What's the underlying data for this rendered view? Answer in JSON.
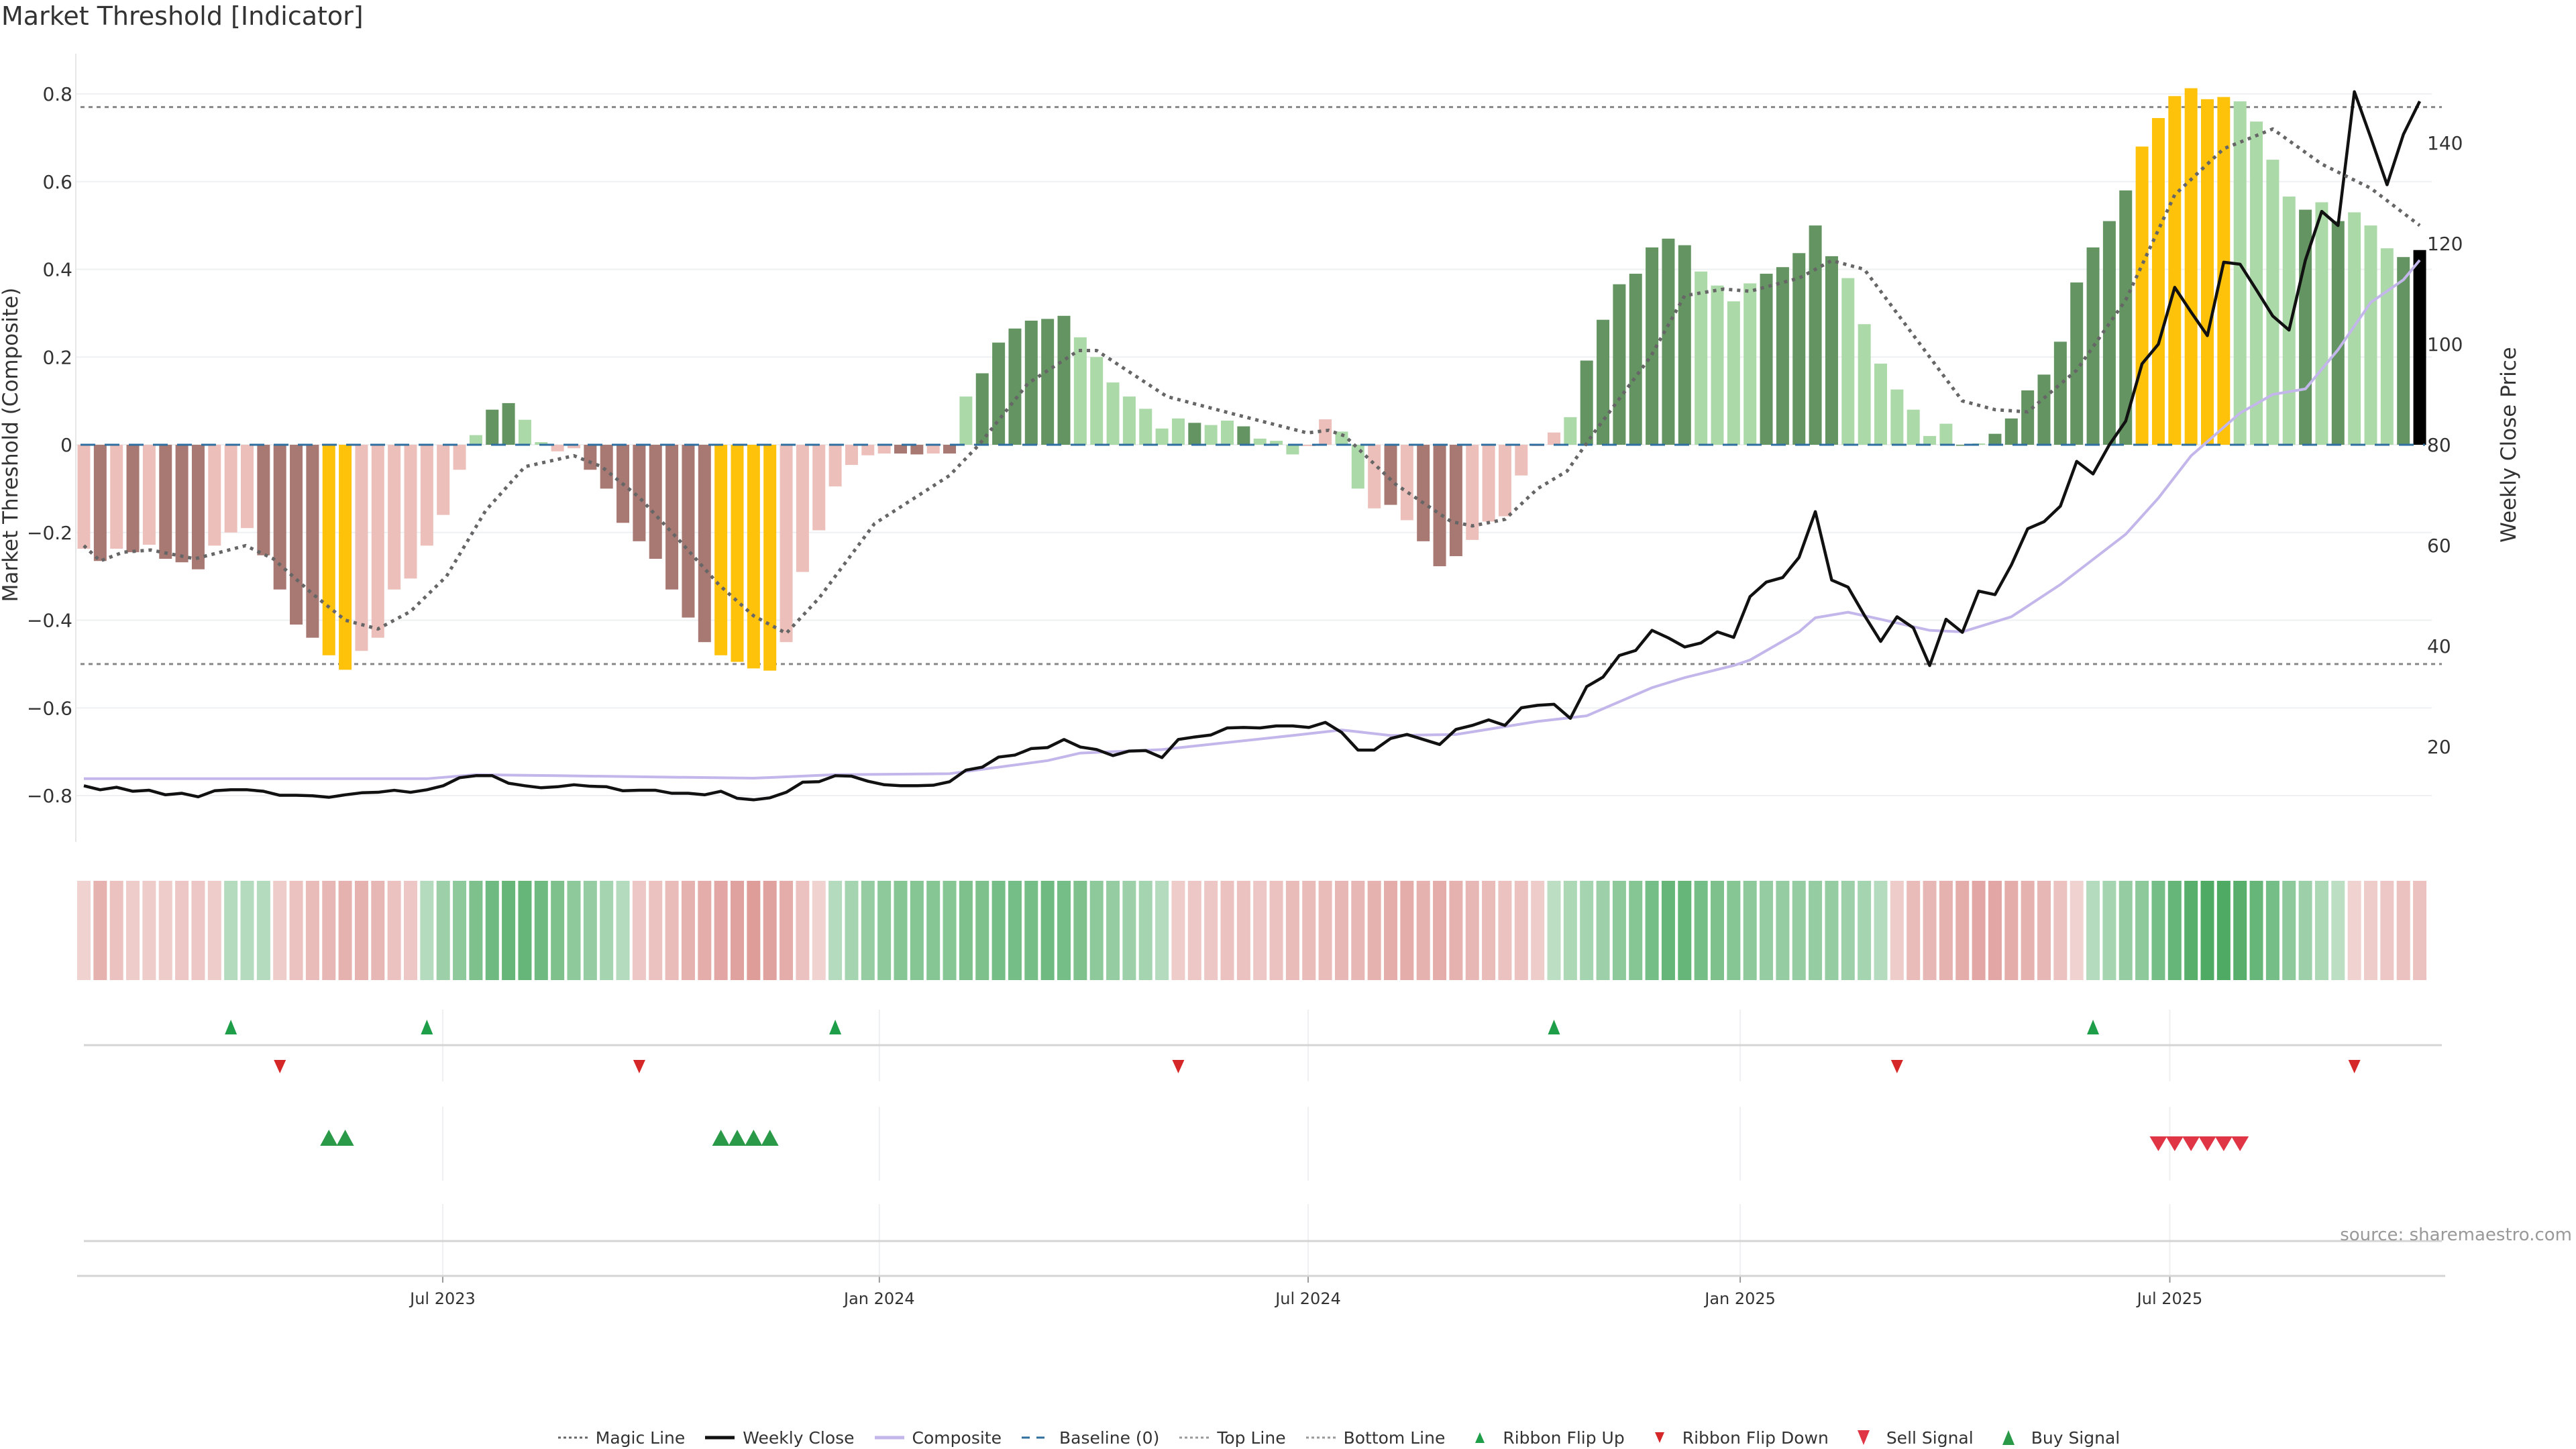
{
  "chart_data": {
    "type": "bar",
    "title": "Market Threshold [Indicator]",
    "ylabel": "Market Threshold (Composite)",
    "y2label": "Weekly Close Price",
    "ylim": [
      -0.9,
      0.88
    ],
    "y2lim": [
      1.5,
      156.7
    ],
    "yticks": [
      -0.8,
      -0.6,
      -0.4,
      -0.2,
      0,
      0.2,
      0.4,
      0.6,
      0.8
    ],
    "ytick_labels": [
      "−0.8",
      "−0.6",
      "−0.4",
      "−0.2",
      "0",
      "0.2",
      "0.4",
      "0.6",
      "0.8"
    ],
    "y2ticks": [
      20,
      40,
      60,
      80,
      100,
      120,
      140
    ],
    "y2tick_labels": [
      "20",
      "40",
      "60",
      "80",
      "100",
      "120",
      "140"
    ],
    "xticks": [
      {
        "label": "Jul 2023",
        "week": 22.97
      },
      {
        "label": "Jan 2024",
        "week": 49.7
      },
      {
        "label": "Jul 2024",
        "week": 75.95
      },
      {
        "label": "Jan 2025",
        "week": 102.4
      },
      {
        "label": "Jul 2025",
        "week": 128.7
      }
    ],
    "top_line": 0.77,
    "bottom_line": -0.5,
    "baseline": 0,
    "palette": {
      "L": "#ecbfba",
      "D": "#a87873",
      "Y": "#ffc20a",
      "g": "#acd9a8",
      "G": "#639461"
    },
    "bar_values": [
      -0.237,
      -0.265,
      -0.237,
      -0.245,
      -0.228,
      -0.26,
      -0.268,
      -0.284,
      -0.23,
      -0.2,
      -0.19,
      -0.252,
      -0.33,
      -0.41,
      -0.44,
      -0.48,
      -0.513,
      -0.47,
      -0.44,
      -0.33,
      -0.305,
      -0.23,
      -0.16,
      -0.057,
      0.022,
      0.08,
      0.095,
      0.057,
      0.006,
      -0.015,
      -0.008,
      -0.057,
      -0.1,
      -0.178,
      -0.22,
      -0.26,
      -0.33,
      -0.394,
      -0.45,
      -0.48,
      -0.495,
      -0.51,
      -0.515,
      -0.45,
      -0.29,
      -0.195,
      -0.095,
      -0.046,
      -0.024,
      -0.02,
      -0.02,
      -0.022,
      -0.02,
      -0.02,
      0.11,
      0.163,
      0.233,
      0.265,
      0.283,
      0.287,
      0.294,
      0.245,
      0.2,
      0.142,
      0.11,
      0.082,
      0.037,
      0.06,
      0.05,
      0.045,
      0.055,
      0.042,
      0.014,
      0.009,
      -0.022,
      -0.003,
      0.058,
      0.03,
      -0.1,
      -0.145,
      -0.137,
      -0.172,
      -0.22,
      -0.277,
      -0.254,
      -0.217,
      -0.175,
      -0.163,
      -0.07,
      -0.003,
      0.028,
      0.063,
      0.192,
      0.285,
      0.366,
      0.39,
      0.45,
      0.47,
      0.455,
      0.395,
      0.363,
      0.327,
      0.368,
      0.39,
      0.405,
      0.437,
      0.5,
      0.43,
      0.38,
      0.275,
      0.185,
      0.126,
      0.08,
      0.02,
      0.048,
      0.0,
      0.003,
      0.025,
      0.06,
      0.124,
      0.16,
      0.235,
      0.37,
      0.45,
      0.51,
      0.58,
      0.68,
      0.745,
      0.795,
      0.813,
      0.788,
      0.793,
      0.783,
      0.737,
      0.65,
      0.566,
      0.536,
      0.553,
      0.51,
      0.53,
      0.5,
      0.448,
      0.428,
      0.444
    ],
    "bar_states": "LDLDLDDDLLLDDDDYYLLLLLLLgGGggLLDDDDDDDDYYYYLLLLLLLDDLDgGGGGGGgggggggGggGgggLLggLDLDDDLLLLLLgGGGGGGGggggGGGGGgggggggGgGGGGGGGGGYYYYYYggggGgGgggG",
    "weekly_close": [
      12.2,
      11.4,
      11.9,
      11.1,
      11.3,
      10.4,
      10.7,
      10.0,
      11.2,
      11.4,
      11.4,
      11.1,
      10.3,
      10.3,
      10.2,
      9.9,
      10.4,
      10.8,
      10.9,
      11.3,
      10.9,
      11.4,
      12.2,
      13.8,
      14.2,
      14.2,
      12.7,
      12.2,
      11.8,
      12.0,
      12.4,
      12.1,
      12.0,
      11.2,
      11.3,
      11.3,
      10.7,
      10.7,
      10.4,
      11.1,
      9.7,
      9.4,
      9.8,
      10.9,
      12.9,
      13.0,
      14.2,
      14.1,
      13.1,
      12.4,
      12.2,
      12.2,
      12.3,
      13.0,
      15.3,
      15.9,
      17.9,
      18.3,
      19.6,
      19.8,
      21.4,
      19.9,
      19.4,
      18.2,
      19.1,
      19.2,
      17.8,
      21.4,
      21.9,
      22.3,
      23.7,
      23.8,
      23.7,
      24.1,
      24.1,
      23.8,
      24.8,
      22.8,
      19.3,
      19.3,
      21.6,
      22.4,
      21.4,
      20.4,
      23.4,
      24.2,
      25.3,
      24.2,
      27.7,
      28.2,
      28.4,
      25.6,
      31.9,
      33.8,
      38.1,
      39.1,
      43.1,
      41.6,
      39.8,
      40.6,
      42.8,
      41.7,
      49.8,
      52.7,
      53.6,
      57.6,
      66.7,
      53.1,
      51.7,
      46.1,
      40.9,
      45.8,
      43.6,
      36.1,
      45.3,
      42.7,
      50.9,
      50.2,
      56.1,
      63.3,
      64.7,
      67.8,
      76.7,
      74.2,
      80.0,
      84.7,
      96.1,
      100.0,
      111.3,
      106.4,
      101.7,
      116.3,
      115.9,
      110.8,
      105.6,
      102.8,
      116.7,
      126.4,
      123.6,
      150.2,
      141.1,
      131.7,
      141.7,
      148.3
    ],
    "composite": [
      [
        1,
        13.6
      ],
      [
        22,
        13.6
      ],
      [
        25,
        14.4
      ],
      [
        30,
        14.2
      ],
      [
        42,
        13.7
      ],
      [
        47,
        14.4
      ],
      [
        54,
        14.6
      ],
      [
        60,
        17.2
      ],
      [
        62,
        18.7
      ],
      [
        67,
        19.4
      ],
      [
        75,
        22.2
      ],
      [
        78,
        23.3
      ],
      [
        81,
        22.2
      ],
      [
        85,
        22.4
      ],
      [
        90,
        25
      ],
      [
        93,
        26.1
      ],
      [
        97,
        31.7
      ],
      [
        99,
        33.7
      ],
      [
        102,
        36.1
      ],
      [
        103,
        37.2
      ],
      [
        106,
        42.8
      ],
      [
        107,
        45.6
      ],
      [
        109,
        46.7
      ],
      [
        111,
        45.3
      ],
      [
        114,
        43.1
      ],
      [
        116,
        42.8
      ],
      [
        119,
        45.8
      ],
      [
        122,
        52.2
      ],
      [
        126,
        62.2
      ],
      [
        128,
        69.4
      ],
      [
        130,
        77.8
      ],
      [
        133,
        86.3
      ],
      [
        135,
        90
      ],
      [
        137,
        91.1
      ],
      [
        139,
        98.9
      ],
      [
        141,
        108.3
      ],
      [
        143,
        112.8
      ],
      [
        144,
        116.7
      ]
    ],
    "magic_line": [
      [
        1,
        -0.23
      ],
      [
        2,
        -0.265
      ],
      [
        3.4,
        -0.245
      ],
      [
        5.1,
        -0.24
      ],
      [
        7.8,
        -0.26
      ],
      [
        10.9,
        -0.23
      ],
      [
        12.6,
        -0.26
      ],
      [
        15,
        -0.34
      ],
      [
        17,
        -0.4
      ],
      [
        19,
        -0.42
      ],
      [
        21,
        -0.38
      ],
      [
        23.2,
        -0.3
      ],
      [
        25.6,
        -0.15
      ],
      [
        28,
        -0.05
      ],
      [
        31,
        -0.025
      ],
      [
        32.7,
        -0.05
      ],
      [
        35,
        -0.12
      ],
      [
        37.5,
        -0.22
      ],
      [
        39.9,
        -0.32
      ],
      [
        42,
        -0.39
      ],
      [
        44,
        -0.43
      ],
      [
        46,
        -0.35
      ],
      [
        49.4,
        -0.18
      ],
      [
        54,
        -0.07
      ],
      [
        55.8,
        0
      ],
      [
        58.8,
        0.14
      ],
      [
        61.9,
        0.215
      ],
      [
        63,
        0.215
      ],
      [
        67.3,
        0.11
      ],
      [
        71.4,
        0.07
      ],
      [
        75.9,
        0.027
      ],
      [
        77.2,
        0.033
      ],
      [
        78.2,
        0.02
      ],
      [
        81.3,
        -0.09
      ],
      [
        84.7,
        -0.175
      ],
      [
        86,
        -0.185
      ],
      [
        88,
        -0.17
      ],
      [
        90,
        -0.1
      ],
      [
        91.8,
        -0.06
      ],
      [
        93.5,
        0.03
      ],
      [
        96.9,
        0.2
      ],
      [
        99,
        0.34
      ],
      [
        101.4,
        0.355
      ],
      [
        103,
        0.35
      ],
      [
        106,
        0.38
      ],
      [
        108,
        0.42
      ],
      [
        110,
        0.4
      ],
      [
        113,
        0.25
      ],
      [
        116,
        0.1
      ],
      [
        118,
        0.08
      ],
      [
        120,
        0.075
      ],
      [
        123,
        0.17
      ],
      [
        126,
        0.33
      ],
      [
        129,
        0.57
      ],
      [
        132,
        0.675
      ],
      [
        135,
        0.72
      ],
      [
        138,
        0.64
      ],
      [
        141,
        0.585
      ],
      [
        144,
        0.5
      ]
    ],
    "ribbon": [
      -0.15,
      -0.45,
      -0.3,
      -0.2,
      -0.2,
      -0.2,
      -0.25,
      -0.25,
      -0.2,
      0.2,
      0.2,
      0.2,
      -0.2,
      -0.3,
      -0.35,
      -0.4,
      -0.45,
      -0.45,
      -0.4,
      -0.3,
      -0.25,
      0.2,
      0.35,
      0.45,
      0.55,
      0.65,
      0.7,
      0.7,
      0.65,
      0.55,
      0.45,
      0.4,
      0.3,
      0.2,
      -0.25,
      -0.3,
      -0.35,
      -0.45,
      -0.5,
      -0.55,
      -0.6,
      -0.65,
      -0.6,
      -0.5,
      -0.3,
      -0.15,
      0.2,
      0.3,
      0.4,
      0.45,
      0.5,
      0.5,
      0.5,
      0.5,
      0.55,
      0.55,
      0.6,
      0.6,
      0.6,
      0.65,
      0.6,
      0.55,
      0.45,
      0.4,
      0.35,
      0.3,
      0.2,
      -0.2,
      -0.25,
      -0.25,
      -0.3,
      -0.3,
      -0.25,
      -0.3,
      -0.35,
      -0.35,
      -0.35,
      -0.4,
      -0.4,
      -0.45,
      -0.5,
      -0.5,
      -0.45,
      -0.5,
      -0.45,
      -0.4,
      -0.35,
      -0.3,
      -0.3,
      -0.2,
      0.15,
      0.25,
      0.3,
      0.35,
      0.45,
      0.5,
      0.6,
      0.7,
      0.7,
      0.6,
      0.55,
      0.5,
      0.45,
      0.4,
      0.4,
      0.4,
      0.4,
      0.4,
      0.35,
      0.3,
      0.2,
      -0.2,
      -0.35,
      -0.4,
      -0.45,
      -0.5,
      -0.55,
      -0.55,
      -0.5,
      -0.45,
      -0.4,
      -0.3,
      -0.15,
      0.2,
      0.3,
      0.4,
      0.45,
      0.6,
      0.7,
      0.8,
      0.85,
      0.85,
      0.8,
      0.7,
      0.6,
      0.45,
      0.35,
      0.25,
      0.15,
      -0.15,
      -0.2,
      -0.25,
      -0.3,
      -0.3
    ],
    "ribbon_flip_up_weeks": [
      10,
      22,
      47,
      91,
      124
    ],
    "ribbon_flip_down_weeks": [
      13,
      35,
      68,
      112,
      140
    ],
    "buy_signal_weeks": [
      16,
      17,
      40,
      41,
      42,
      43
    ],
    "sell_signal_weeks": [
      128,
      129,
      130,
      131,
      132,
      133
    ],
    "colors": {
      "magic": "#666666",
      "close": "#111111",
      "composite": "#c3b6ea",
      "baseline": "#2f6f9f",
      "threshold": "#888888",
      "up": "#1e9e48",
      "down": "#d62728",
      "sell": "#e03545",
      "buy": "#2a9a48"
    },
    "legend": [
      {
        "label": "Magic Line",
        "kind": "dotted",
        "color": "#666666"
      },
      {
        "label": "Weekly Close",
        "kind": "solid",
        "color": "#111111"
      },
      {
        "label": "Composite",
        "kind": "solid-light",
        "color": "#c3b6ea"
      },
      {
        "label": "Baseline (0)",
        "kind": "dashed",
        "color": "#2f6f9f"
      },
      {
        "label": "Top Line",
        "kind": "dotted-thin",
        "color": "#999999"
      },
      {
        "label": "Bottom Line",
        "kind": "dotted-thin",
        "color": "#999999"
      },
      {
        "label": "Ribbon Flip Up",
        "kind": "tri-up-small",
        "color": "#1e9e48"
      },
      {
        "label": "Ribbon Flip Down",
        "kind": "tri-down-small",
        "color": "#d62728"
      },
      {
        "label": "Sell Signal",
        "kind": "tri-down",
        "color": "#e03545"
      },
      {
        "label": "Buy Signal",
        "kind": "tri-up",
        "color": "#2a9a48"
      }
    ]
  },
  "source": "source: sharemaestro.com"
}
